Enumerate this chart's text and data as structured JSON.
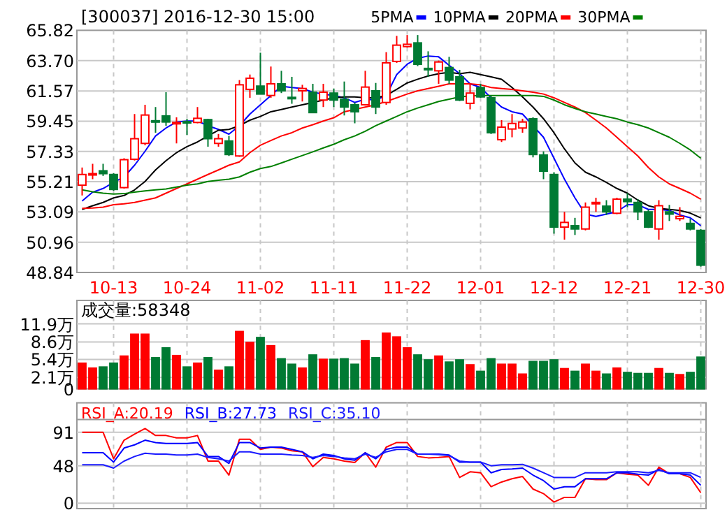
{
  "chart_data": [
    {
      "type": "candlestick",
      "title": "[300037] 2016-12-30 15:00",
      "legend": "top",
      "grid": true,
      "tick_labels": "xy",
      "categories": [
        null,
        null,
        null,
        "10-13",
        null,
        null,
        null,
        null,
        null,
        null,
        "10-24",
        null,
        null,
        null,
        null,
        null,
        null,
        "11-02",
        null,
        null,
        null,
        null,
        null,
        null,
        "11-11",
        null,
        null,
        null,
        null,
        null,
        null,
        "11-22",
        null,
        null,
        null,
        null,
        null,
        null,
        "12-01",
        null,
        null,
        null,
        null,
        null,
        null,
        "12-12",
        null,
        null,
        null,
        null,
        null,
        null,
        "12-21",
        null,
        null,
        null,
        null,
        null,
        null,
        "12-30"
      ],
      "ohlc": [
        [
          54.96,
          56.2,
          54.24,
          55.71
        ],
        [
          55.71,
          56.46,
          55.38,
          55.77
        ],
        [
          55.97,
          56.46,
          55.61,
          55.77
        ],
        [
          55.71,
          55.8,
          54.57,
          54.66
        ],
        [
          54.79,
          56.85,
          54.73,
          56.75
        ],
        [
          56.78,
          59.95,
          56.69,
          58.22
        ],
        [
          57.89,
          60.6,
          57.76,
          59.88
        ],
        [
          59.48,
          60.44,
          58.64,
          59.45
        ],
        [
          59.82,
          61.48,
          59.13,
          59.39
        ],
        [
          59.26,
          59.72,
          57.89,
          59.36
        ],
        [
          59.42,
          59.62,
          58.48,
          59.36
        ],
        [
          59.36,
          60.44,
          59.3,
          59.65
        ],
        [
          59.56,
          59.62,
          57.66,
          58.22
        ],
        [
          57.89,
          58.55,
          57.66,
          58.22
        ],
        [
          58.06,
          58.42,
          57.01,
          57.11
        ],
        [
          57.01,
          62.33,
          56.95,
          62.0
        ],
        [
          61.68,
          62.72,
          61.09,
          62.46
        ],
        [
          61.91,
          64.25,
          61.35,
          61.35
        ],
        [
          61.25,
          63.28,
          61.09,
          62.07
        ],
        [
          62.07,
          62.98,
          61.42,
          61.58
        ],
        [
          61.12,
          62.56,
          60.67,
          61.09
        ],
        [
          61.58,
          62.0,
          60.83,
          61.74
        ],
        [
          61.48,
          62.07,
          60.01,
          60.05
        ],
        [
          60.93,
          62.07,
          60.44,
          61.48
        ],
        [
          61.42,
          61.74,
          60.44,
          60.93
        ],
        [
          60.99,
          62.23,
          59.85,
          60.44
        ],
        [
          60.6,
          60.76,
          59.3,
          60.11
        ],
        [
          60.6,
          62.98,
          60.54,
          61.84
        ],
        [
          61.58,
          62.13,
          59.95,
          60.44
        ],
        [
          60.76,
          64.29,
          60.6,
          63.54
        ],
        [
          63.64,
          65.43,
          63.54,
          64.78
        ],
        [
          64.68,
          65.49,
          64.61,
          64.84
        ],
        [
          64.94,
          65.49,
          63.31,
          63.44
        ],
        [
          63.15,
          64.35,
          62.56,
          63.11
        ],
        [
          62.98,
          63.7,
          62.07,
          63.6
        ],
        [
          63.21,
          63.96,
          62.07,
          62.33
        ],
        [
          62.56,
          63.05,
          60.86,
          60.93
        ],
        [
          60.7,
          62.07,
          60.28,
          61.42
        ],
        [
          61.81,
          62.07,
          61.09,
          61.15
        ],
        [
          61.09,
          61.25,
          58.55,
          58.64
        ],
        [
          58.15,
          59.52,
          57.99,
          59.03
        ],
        [
          58.9,
          59.95,
          58.32,
          59.29
        ],
        [
          58.97,
          59.62,
          58.64,
          59.39
        ],
        [
          59.62,
          59.72,
          56.91,
          57.11
        ],
        [
          57.08,
          57.33,
          55.38,
          55.94
        ],
        [
          55.71,
          55.87,
          51.56,
          52.02
        ],
        [
          52.02,
          53.09,
          51.14,
          52.35
        ],
        [
          52.12,
          52.67,
          51.47,
          51.89
        ],
        [
          51.89,
          53.75,
          51.79,
          53.42
        ],
        [
          53.68,
          54.08,
          53.09,
          53.75
        ],
        [
          53.49,
          53.91,
          52.87,
          53.09
        ],
        [
          52.99,
          54.08,
          52.93,
          53.98
        ],
        [
          53.98,
          54.4,
          53.42,
          53.81
        ],
        [
          53.75,
          53.98,
          52.51,
          53.09
        ],
        [
          53.09,
          53.26,
          51.96,
          52.02
        ],
        [
          51.89,
          53.91,
          51.14,
          53.52
        ],
        [
          53.09,
          53.58,
          52.45,
          52.93
        ],
        [
          52.61,
          53.42,
          52.45,
          52.77
        ],
        [
          52.28,
          52.61,
          51.79,
          51.89
        ],
        [
          51.79,
          51.89,
          49.25,
          49.35
        ]
      ],
      "colors": [
        "#ff0000",
        "#ff0000",
        "#007a33",
        "#007a33",
        "#ff0000",
        "#ff0000",
        "#ff0000",
        "#007a33",
        "#007a33",
        "#ff0000",
        "#007a33",
        "#ff0000",
        "#007a33",
        "#ff0000",
        "#007a33",
        "#ff0000",
        "#ff0000",
        "#007a33",
        "#ff0000",
        "#007a33",
        "#007a33",
        "#ff0000",
        "#007a33",
        "#ff0000",
        "#007a33",
        "#007a33",
        "#007a33",
        "#ff0000",
        "#007a33",
        "#ff0000",
        "#ff0000",
        "#ff0000",
        "#007a33",
        "#007a33",
        "#ff0000",
        "#007a33",
        "#007a33",
        "#ff0000",
        "#007a33",
        "#007a33",
        "#ff0000",
        "#ff0000",
        "#ff0000",
        "#007a33",
        "#007a33",
        "#007a33",
        "#ff0000",
        "#007a33",
        "#ff0000",
        "#ff0000",
        "#007a33",
        "#ff0000",
        "#007a33",
        "#007a33",
        "#007a33",
        "#ff0000",
        "#007a33",
        "#ff0000",
        "#007a33",
        "#007a33"
      ],
      "series": [
        {
          "name": "5PMA",
          "type": "line",
          "color": "#0000ff",
          "values": [
            53.85,
            54.47,
            54.73,
            55.15,
            55.54,
            56.36,
            57.34,
            58.41,
            58.97,
            59.39,
            59.46,
            59.46,
            59.13,
            58.87,
            58.54,
            59.13,
            59.95,
            60.6,
            61.25,
            61.9,
            61.81,
            61.74,
            61.48,
            61.35,
            61.25,
            61.09,
            60.76,
            60.99,
            60.93,
            61.25,
            62.72,
            63.44,
            63.86,
            64.02,
            63.96,
            63.37,
            62.78,
            62.07,
            61.81,
            61.09,
            60.44,
            60.11,
            59.95,
            59.13,
            58.32,
            56.85,
            55.38,
            54.07,
            52.93,
            52.77,
            52.93,
            53.1,
            53.59,
            53.59,
            53.26,
            53.26,
            53.19,
            52.87,
            52.67,
            52.12
          ]
        },
        {
          "name": "10PMA",
          "type": "line",
          "color": "#000000",
          "values": [
            53.26,
            53.52,
            53.75,
            54.07,
            54.24,
            54.63,
            55.22,
            56.03,
            56.68,
            57.24,
            57.66,
            57.99,
            58.41,
            58.81,
            58.87,
            59.13,
            59.52,
            59.78,
            60.11,
            60.27,
            60.44,
            60.6,
            60.76,
            60.93,
            61.09,
            61.15,
            61.15,
            61.09,
            61.09,
            61.25,
            61.68,
            62.13,
            62.39,
            62.62,
            62.78,
            62.88,
            62.78,
            62.88,
            62.72,
            62.56,
            62.39,
            61.81,
            61.15,
            60.44,
            59.62,
            58.64,
            57.5,
            56.52,
            55.87,
            55.54,
            55.15,
            54.73,
            54.4,
            53.91,
            53.52,
            53.33,
            53.26,
            53.19,
            53.0,
            52.67
          ]
        },
        {
          "name": "20PMA",
          "type": "line",
          "color": "#ff0000",
          "values": [
            53.33,
            53.36,
            53.42,
            53.59,
            53.65,
            53.75,
            53.91,
            54.07,
            54.4,
            54.73,
            55.05,
            55.38,
            55.71,
            56.03,
            56.36,
            56.59,
            57.24,
            57.76,
            58.09,
            58.41,
            58.64,
            58.97,
            59.2,
            59.46,
            59.69,
            60.11,
            60.27,
            60.44,
            60.6,
            60.83,
            61.09,
            61.35,
            61.58,
            61.74,
            61.9,
            62.07,
            62.07,
            62.07,
            62.0,
            61.81,
            61.74,
            61.68,
            61.58,
            61.48,
            61.35,
            61.09,
            60.76,
            60.44,
            60.05,
            59.52,
            58.97,
            58.32,
            57.66,
            57.01,
            56.2,
            55.54,
            55.05,
            54.73,
            54.4,
            53.98
          ]
        },
        {
          "name": "30PMA",
          "type": "line",
          "color": "#008000",
          "values": [
            54.63,
            54.5,
            54.4,
            54.34,
            54.37,
            54.47,
            54.56,
            54.63,
            54.69,
            54.83,
            54.96,
            55.05,
            55.22,
            55.31,
            55.38,
            55.54,
            55.87,
            56.13,
            56.27,
            56.52,
            56.78,
            57.04,
            57.3,
            57.57,
            57.83,
            58.15,
            58.41,
            58.74,
            59.13,
            59.46,
            59.78,
            60.11,
            60.37,
            60.6,
            60.83,
            60.99,
            61.15,
            61.22,
            61.25,
            61.25,
            61.25,
            61.25,
            61.25,
            61.25,
            61.19,
            60.93,
            60.6,
            60.34,
            60.11,
            59.95,
            59.78,
            59.62,
            59.39,
            59.2,
            58.97,
            58.64,
            58.32,
            57.89,
            57.43,
            56.85
          ]
        }
      ],
      "ylim": [
        48.84,
        65.82
      ],
      "yticks": [
        48.84,
        50.96,
        53.09,
        55.21,
        57.33,
        59.45,
        61.57,
        {
          "value": 63.7,
          "label": "63.70"
        },
        65.82
      ]
    },
    {
      "type": "bar",
      "title": "成交量:58348",
      "grid": true,
      "tick_labels": "y",
      "categories": [
        null,
        null,
        null,
        null,
        null,
        null,
        null,
        null,
        null,
        null,
        null,
        null,
        null,
        null,
        null,
        null,
        null,
        null,
        null,
        null,
        null,
        null,
        null,
        null,
        null,
        null,
        null,
        null,
        null,
        null,
        null,
        null,
        null,
        null,
        null,
        null,
        null,
        null,
        null,
        null,
        null,
        null,
        null,
        null,
        null,
        null,
        null,
        null,
        null,
        null,
        null,
        null,
        null,
        null,
        null,
        null,
        null,
        null,
        null,
        null
      ],
      "values": [
        4.7,
        3.8,
        4.0,
        4.7,
        6.0,
        10.0,
        10.0,
        5.7,
        7.5,
        6.1,
        4.0,
        4.7,
        5.7,
        3.4,
        4.0,
        10.5,
        8.5,
        9.4,
        7.9,
        5.5,
        4.5,
        3.8,
        6.2,
        5.4,
        5.4,
        5.5,
        4.5,
        8.8,
        5.7,
        10.2,
        9.5,
        7.5,
        6.2,
        5.3,
        6.0,
        4.9,
        5.3,
        4.4,
        3.2,
        5.5,
        4.5,
        4.5,
        2.7,
        5.0,
        5.0,
        5.3,
        3.7,
        3.2,
        4.5,
        3.2,
        2.7,
        3.8,
        3.0,
        2.8,
        2.8,
        3.7,
        2.8,
        2.6,
        3.0,
        5.8
      ],
      "colors": [
        "#ff0000",
        "#ff0000",
        "#007a33",
        "#007a33",
        "#ff0000",
        "#ff0000",
        "#ff0000",
        "#007a33",
        "#007a33",
        "#ff0000",
        "#007a33",
        "#ff0000",
        "#007a33",
        "#ff0000",
        "#007a33",
        "#ff0000",
        "#ff0000",
        "#007a33",
        "#ff0000",
        "#007a33",
        "#007a33",
        "#ff0000",
        "#007a33",
        "#ff0000",
        "#007a33",
        "#007a33",
        "#007a33",
        "#ff0000",
        "#007a33",
        "#ff0000",
        "#ff0000",
        "#ff0000",
        "#007a33",
        "#007a33",
        "#ff0000",
        "#007a33",
        "#007a33",
        "#ff0000",
        "#007a33",
        "#007a33",
        "#ff0000",
        "#ff0000",
        "#ff0000",
        "#007a33",
        "#007a33",
        "#007a33",
        "#ff0000",
        "#007a33",
        "#ff0000",
        "#ff0000",
        "#007a33",
        "#ff0000",
        "#007a33",
        "#007a33",
        "#007a33",
        "#ff0000",
        "#007a33",
        "#ff0000",
        "#007a33",
        "#007a33"
      ],
      "ylim": [
        0,
        16.2
      ],
      "yticks": [
        0,
        {
          "value": 2.1,
          "label": "2.1万"
        },
        {
          "value": 5.4,
          "label": "5.4万"
        },
        {
          "value": 8.6,
          "label": "8.6万"
        },
        {
          "value": 11.9,
          "label": "11.9万"
        }
      ]
    },
    {
      "type": "line",
      "legend": "top",
      "grid": true,
      "tick_labels": "y",
      "categories": [
        null,
        null,
        null,
        null,
        null,
        null,
        null,
        null,
        null,
        null,
        null,
        null,
        null,
        null,
        null,
        null,
        null,
        null,
        null,
        null,
        null,
        null,
        null,
        null,
        null,
        null,
        null,
        null,
        null,
        null,
        null,
        null,
        null,
        null,
        null,
        null,
        null,
        null,
        null,
        null,
        null,
        null,
        null,
        null,
        null,
        null,
        null,
        null,
        null,
        null,
        null,
        null,
        null,
        null,
        null,
        null,
        null,
        null,
        null,
        null
      ],
      "series": [
        {
          "name": "RSI_A:20.19",
          "color": "#ff0000",
          "values": [
            90.9,
            90.9,
            90.9,
            56.9,
            80.8,
            88.6,
            95.7,
            86.8,
            86.8,
            83.8,
            83.8,
            86.8,
            54.0,
            54.0,
            36.0,
            82.0,
            82.0,
            68.9,
            71.9,
            70.7,
            67.1,
            65.9,
            46.8,
            58.7,
            56.9,
            54.0,
            52.1,
            64.7,
            46.2,
            71.9,
            77.8,
            77.8,
            59.9,
            58.1,
            58.7,
            59.9,
            33.0,
            40.2,
            39.0,
            21.1,
            27.1,
            31.3,
            34.2,
            18.1,
            12.2,
            1.4,
            7.4,
            7.4,
            31.3,
            30.1,
            30.1,
            39.0,
            37.2,
            36.0,
            22.9,
            46.2,
            37.8,
            37.8,
            33.0,
            13.4
          ]
        },
        {
          "name": "RSI_B:27.73",
          "color": "#0000ff",
          "values": [
            64.7,
            64.7,
            64.7,
            52.7,
            70.7,
            74.8,
            80.8,
            77.8,
            76.6,
            76.6,
            76.6,
            77.8,
            59.9,
            59.9,
            51.0,
            77.8,
            77.8,
            70.7,
            71.9,
            71.9,
            68.9,
            65.9,
            56.9,
            62.9,
            61.1,
            56.9,
            55.1,
            64.7,
            56.9,
            68.9,
            71.9,
            71.9,
            62.9,
            62.9,
            62.9,
            61.7,
            52.7,
            52.7,
            52.7,
            39.0,
            43.2,
            43.8,
            45.0,
            36.0,
            28.9,
            18.1,
            21.1,
            21.1,
            31.3,
            31.3,
            31.3,
            39.0,
            39.0,
            37.2,
            36.0,
            43.2,
            37.8,
            37.8,
            36.0,
            22.9
          ]
        },
        {
          "name": "RSI_C:35.10",
          "color": "#1a1aff",
          "values": [
            49.2,
            49.2,
            49.2,
            45.0,
            54.0,
            59.9,
            64.1,
            62.9,
            62.9,
            61.7,
            61.7,
            62.9,
            58.7,
            56.9,
            54.0,
            65.9,
            65.9,
            62.9,
            62.9,
            62.9,
            61.7,
            61.1,
            58.7,
            61.1,
            59.9,
            58.1,
            56.9,
            62.9,
            58.7,
            65.9,
            68.9,
            68.9,
            62.9,
            62.9,
            62.3,
            61.1,
            54.0,
            52.7,
            52.7,
            48.0,
            49.2,
            49.2,
            49.8,
            45.0,
            39.0,
            33.0,
            33.0,
            33.0,
            39.0,
            39.0,
            39.0,
            40.2,
            40.2,
            40.2,
            39.0,
            42.0,
            39.0,
            39.0,
            39.0,
            33.0
          ]
        }
      ],
      "ylim": [
        -7,
        104.7
      ],
      "yticks": [
        0,
        48,
        91
      ]
    }
  ]
}
